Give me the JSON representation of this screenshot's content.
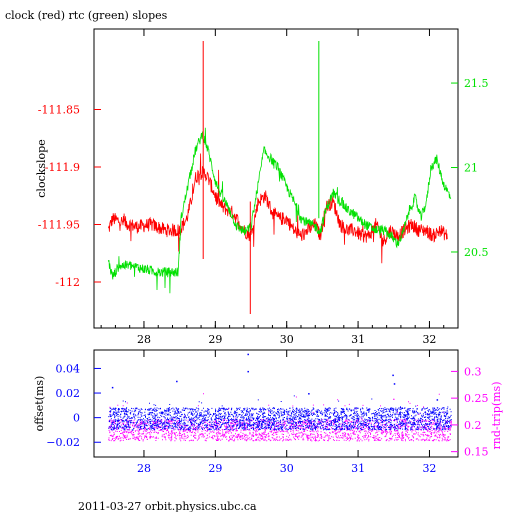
{
  "title": "clock (red) rtc (green) slopes",
  "footer": "2011-03-27  orbit.physics.ubc.ca",
  "colors": {
    "clock": "#ff0000",
    "rtc": "#00e000",
    "offset": "#0000ff",
    "rndtrip": "#ff00ff",
    "axis": "#000000"
  },
  "chart_data": [
    {
      "type": "line",
      "title": "clock (red) rtc (green) slopes",
      "ylabel": "clockslope",
      "xlim": [
        27.3,
        32.4
      ],
      "ylim": [
        -112.04,
        -111.78
      ],
      "y2lim": [
        20.05,
        21.82
      ],
      "xticks": [
        28,
        29,
        30,
        31,
        32
      ],
      "xtick_labels": [
        "28",
        "29",
        "30",
        "31",
        "32"
      ],
      "yticks": [
        -111.85,
        -111.9,
        -111.95,
        -112
      ],
      "ytick_labels": [
        "-111.85",
        "-111.9",
        "-111.95",
        "-112"
      ],
      "y2ticks": [
        21.5,
        21,
        20.5
      ],
      "y2tick_labels": [
        "21.5",
        "21",
        "20.5"
      ],
      "series": [
        {
          "name": "clock",
          "axis": "left",
          "x": [
            27.5,
            27.56,
            27.7,
            27.9,
            28.1,
            28.3,
            28.5,
            28.6,
            28.66,
            28.72,
            28.78,
            28.85,
            28.9,
            29.0,
            29.1,
            29.25,
            29.4,
            29.5,
            29.55,
            29.6,
            29.7,
            29.8,
            29.9,
            30.0,
            30.1,
            30.2,
            30.3,
            30.4,
            30.47,
            30.55,
            30.65,
            30.75,
            30.85,
            30.95,
            31.05,
            31.15,
            31.25,
            31.35,
            31.45,
            31.55,
            31.65,
            31.75,
            31.85,
            31.95,
            32.05,
            32.15,
            32.25
          ],
          "y": [
            -111.955,
            -111.945,
            -111.948,
            -111.952,
            -111.95,
            -111.955,
            -111.955,
            -111.945,
            -111.93,
            -111.91,
            -111.905,
            -111.905,
            -111.91,
            -111.925,
            -111.935,
            -111.94,
            -111.955,
            -111.96,
            -111.945,
            -111.93,
            -111.925,
            -111.94,
            -111.945,
            -111.945,
            -111.955,
            -111.96,
            -111.955,
            -111.95,
            -111.96,
            -111.935,
            -111.93,
            -111.95,
            -111.955,
            -111.955,
            -111.96,
            -111.96,
            -111.95,
            -111.965,
            -111.955,
            -111.96,
            -111.955,
            -111.95,
            -111.955,
            -111.955,
            -111.96,
            -111.955,
            -111.96
          ]
        },
        {
          "name": "rtc",
          "axis": "right",
          "x": [
            27.5,
            27.56,
            27.65,
            27.8,
            28.0,
            28.2,
            28.38,
            28.48,
            28.52,
            28.62,
            28.72,
            28.82,
            28.9,
            29.0,
            29.1,
            29.2,
            29.3,
            29.42,
            29.5,
            29.58,
            29.68,
            29.78,
            29.88,
            29.98,
            30.1,
            30.2,
            30.3,
            30.4,
            30.47,
            30.55,
            30.65,
            30.75,
            30.85,
            30.95,
            31.05,
            31.15,
            31.25,
            31.35,
            31.45,
            31.55,
            31.62,
            31.72,
            31.8,
            31.88,
            31.96,
            32.02,
            32.1,
            32.2,
            32.3
          ],
          "y": [
            20.45,
            20.35,
            20.42,
            20.42,
            20.4,
            20.38,
            20.38,
            20.38,
            20.7,
            20.9,
            21.1,
            21.2,
            21.1,
            20.92,
            20.82,
            20.75,
            20.65,
            20.62,
            20.65,
            20.85,
            21.1,
            21.05,
            21.0,
            20.9,
            20.8,
            20.7,
            20.67,
            20.65,
            20.62,
            20.75,
            20.85,
            20.8,
            20.75,
            20.72,
            20.68,
            20.65,
            20.63,
            20.63,
            20.6,
            20.55,
            20.6,
            20.75,
            20.82,
            20.7,
            20.8,
            21.0,
            21.05,
            20.9,
            20.82
          ]
        }
      ]
    },
    {
      "type": "scatter",
      "ylabel": "offset(ms)",
      "y2label": "rnd-trip(ms)",
      "xlim": [
        27.3,
        32.4
      ],
      "ylim": [
        -0.032,
        0.055
      ],
      "y2lim": [
        0.14,
        0.34
      ],
      "xticks": [
        28,
        29,
        30,
        31,
        32
      ],
      "xtick_labels": [
        "28",
        "29",
        "30",
        "31",
        "32"
      ],
      "yticks": [
        0.04,
        0.02,
        0,
        -0.02
      ],
      "ytick_labels": [
        "0.04",
        "0.02",
        "0",
        "−0.02"
      ],
      "y2ticks": [
        0.3,
        0.25,
        0.2,
        0.15
      ],
      "y2tick_labels": [
        "0.3",
        "0.25",
        "0.2",
        "0.15"
      ],
      "series": [
        {
          "name": "offset",
          "axis": "left",
          "band": [
            -0.01,
            0.008
          ],
          "x_range": [
            27.5,
            32.3
          ]
        },
        {
          "name": "rnd-trip",
          "axis": "right",
          "band": [
            0.17,
            0.21
          ],
          "x_range": [
            27.5,
            32.3
          ]
        }
      ]
    }
  ]
}
